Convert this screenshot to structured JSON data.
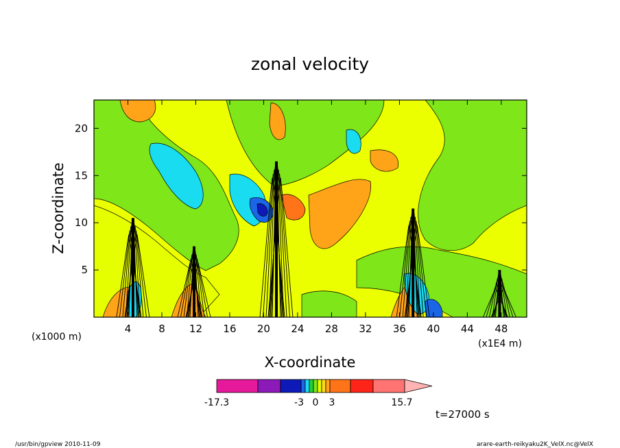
{
  "chart_data": {
    "type": "heatmap",
    "title": "zonal velocity",
    "xlabel": "X-coordinate",
    "ylabel": "Z-coordinate",
    "x_unit_left": "(x1000 m)",
    "x_unit_right": "(x1E4 m)",
    "x_ticks": [
      "4",
      "8",
      "12",
      "16",
      "20",
      "24",
      "28",
      "32",
      "36",
      "40",
      "44",
      "48"
    ],
    "y_ticks": [
      "5",
      "10",
      "15",
      "20"
    ],
    "xlim": [
      0,
      51
    ],
    "ylim": [
      0,
      23
    ],
    "colorbar": {
      "labels": [
        "-17.3",
        "-3",
        "0",
        "3",
        "15.7"
      ],
      "min": -17.3,
      "max": 15.7,
      "colors": [
        "#e6199a",
        "#8b1ab8",
        "#0d1ab8",
        "#1a66e6",
        "#19dcf0",
        "#22d13a",
        "#7fe61a",
        "#e6ff00",
        "#ffd91a",
        "#ffa319",
        "#ff7319",
        "#ff2419",
        "#ff7373",
        "#ffb3b3"
      ]
    },
    "time_label": "t=27000 s",
    "peaks": [
      {
        "x": 4.6,
        "top": 10.5
      },
      {
        "x": 11.8,
        "top": 7.5
      },
      {
        "x": 21.5,
        "top": 16.5
      },
      {
        "x": 37.6,
        "top": 11.5
      },
      {
        "x": 47.8,
        "top": 5.0
      }
    ]
  },
  "footer": {
    "left": "/usr/bin/gpview   2010-11-09",
    "right": "arare-earth-reikyaku2K_VelX.nc@VelX"
  }
}
